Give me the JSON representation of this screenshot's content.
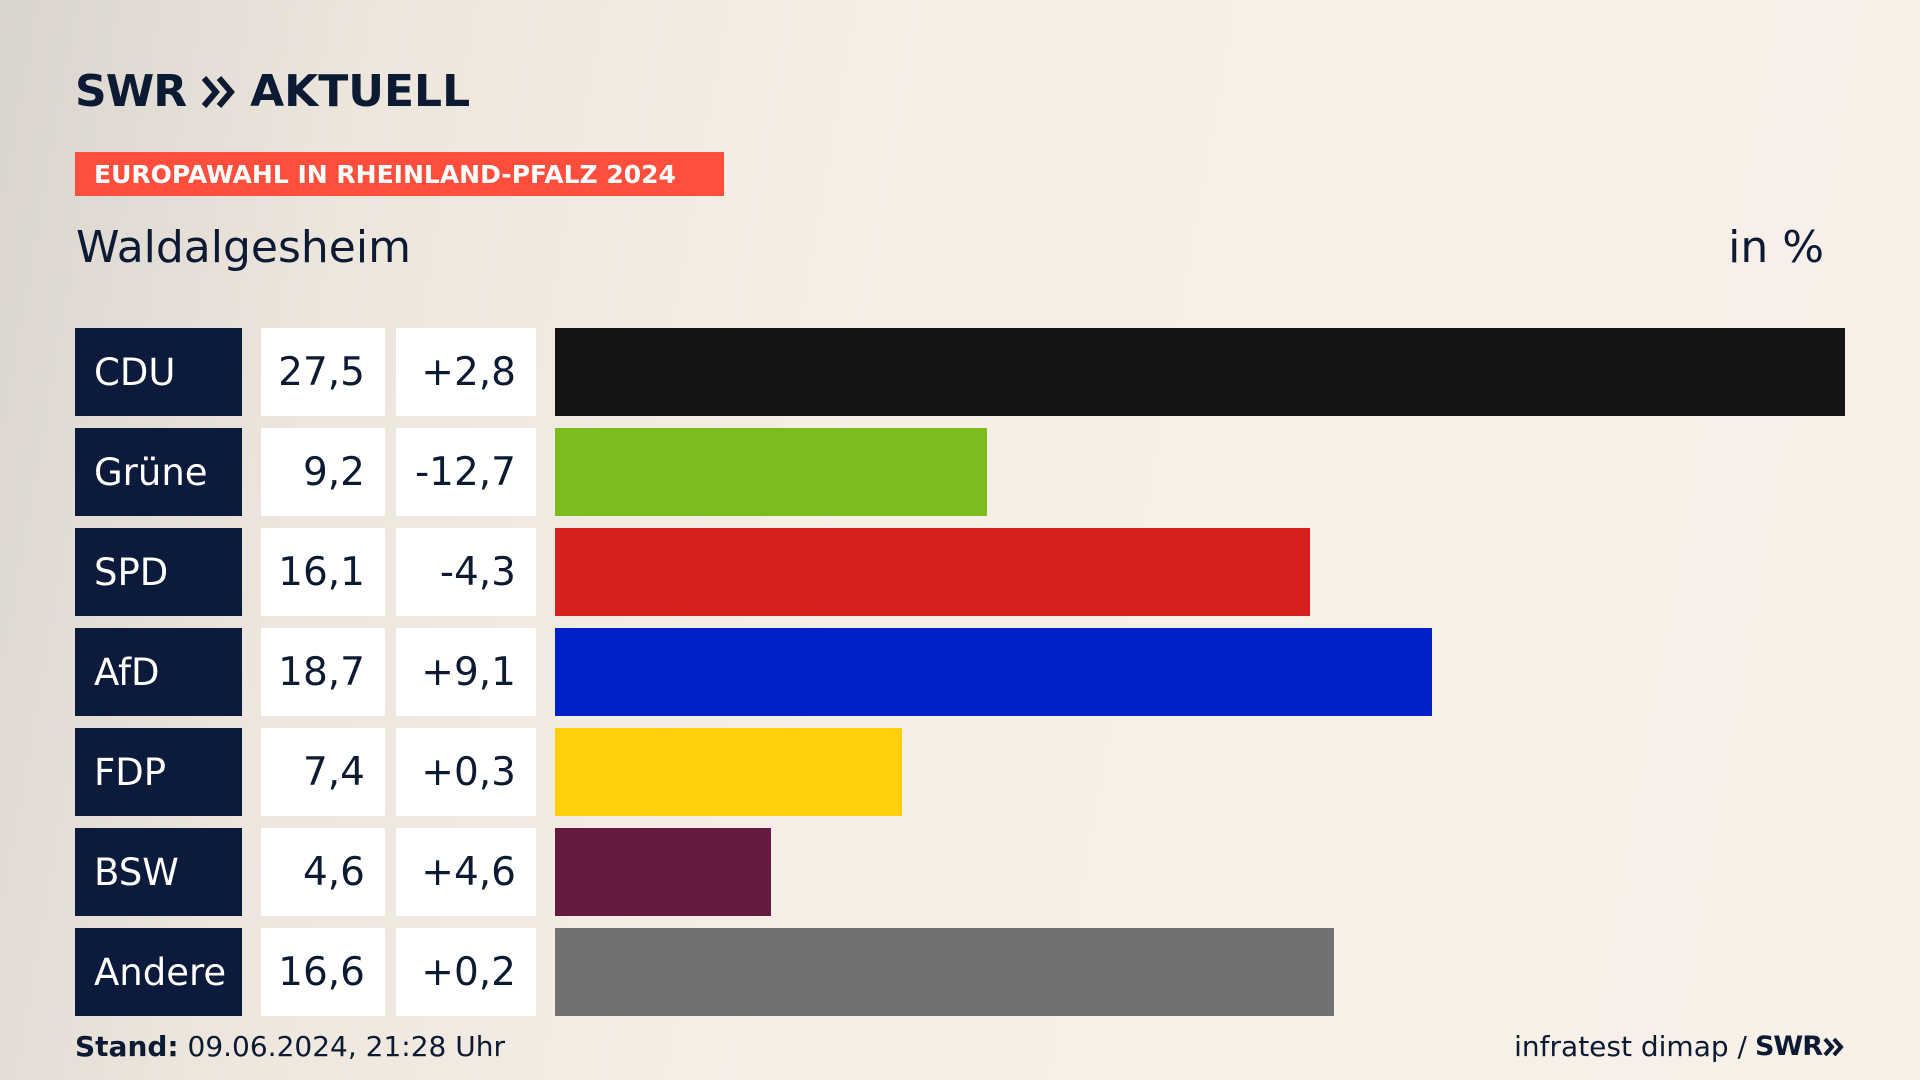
{
  "header": {
    "logo_left": "SWR",
    "logo_right": "AKTUELL",
    "banner": "EUROPAWAHL IN RHEINLAND-PFALZ 2024",
    "region": "Waldalgesheim",
    "unit": "in %"
  },
  "colors": {
    "navy": "#0c1a3b",
    "banner": "#ff4f3c"
  },
  "chart_data": {
    "type": "bar",
    "orientation": "horizontal",
    "title": "Waldalgesheim",
    "unit": "in %",
    "categories": [
      "CDU",
      "Grüne",
      "SPD",
      "AfD",
      "FDP",
      "BSW",
      "Andere"
    ],
    "values": [
      27.5,
      9.2,
      16.1,
      18.7,
      7.4,
      4.6,
      16.6
    ],
    "value_labels": [
      "27,5",
      "9,2",
      "16,1",
      "18,7",
      "7,4",
      "4,6",
      "16,6"
    ],
    "diff_labels": [
      "+2,8",
      "-12,7",
      "-4,3",
      "+9,1",
      "+0,3",
      "+4,6",
      "+0,2"
    ],
    "colors": [
      "#141414",
      "#7bbd1c",
      "#d81f1f",
      "#0220c8",
      "#ffcf0a",
      "#661a3f",
      "#717173"
    ],
    "xlim": [
      0,
      27.5
    ]
  },
  "footer": {
    "stand_label": "Stand:",
    "stand_value": " 09.06.2024, 21:28 Uhr",
    "source": "infratest dimap /",
    "source_logo": "SWR"
  }
}
